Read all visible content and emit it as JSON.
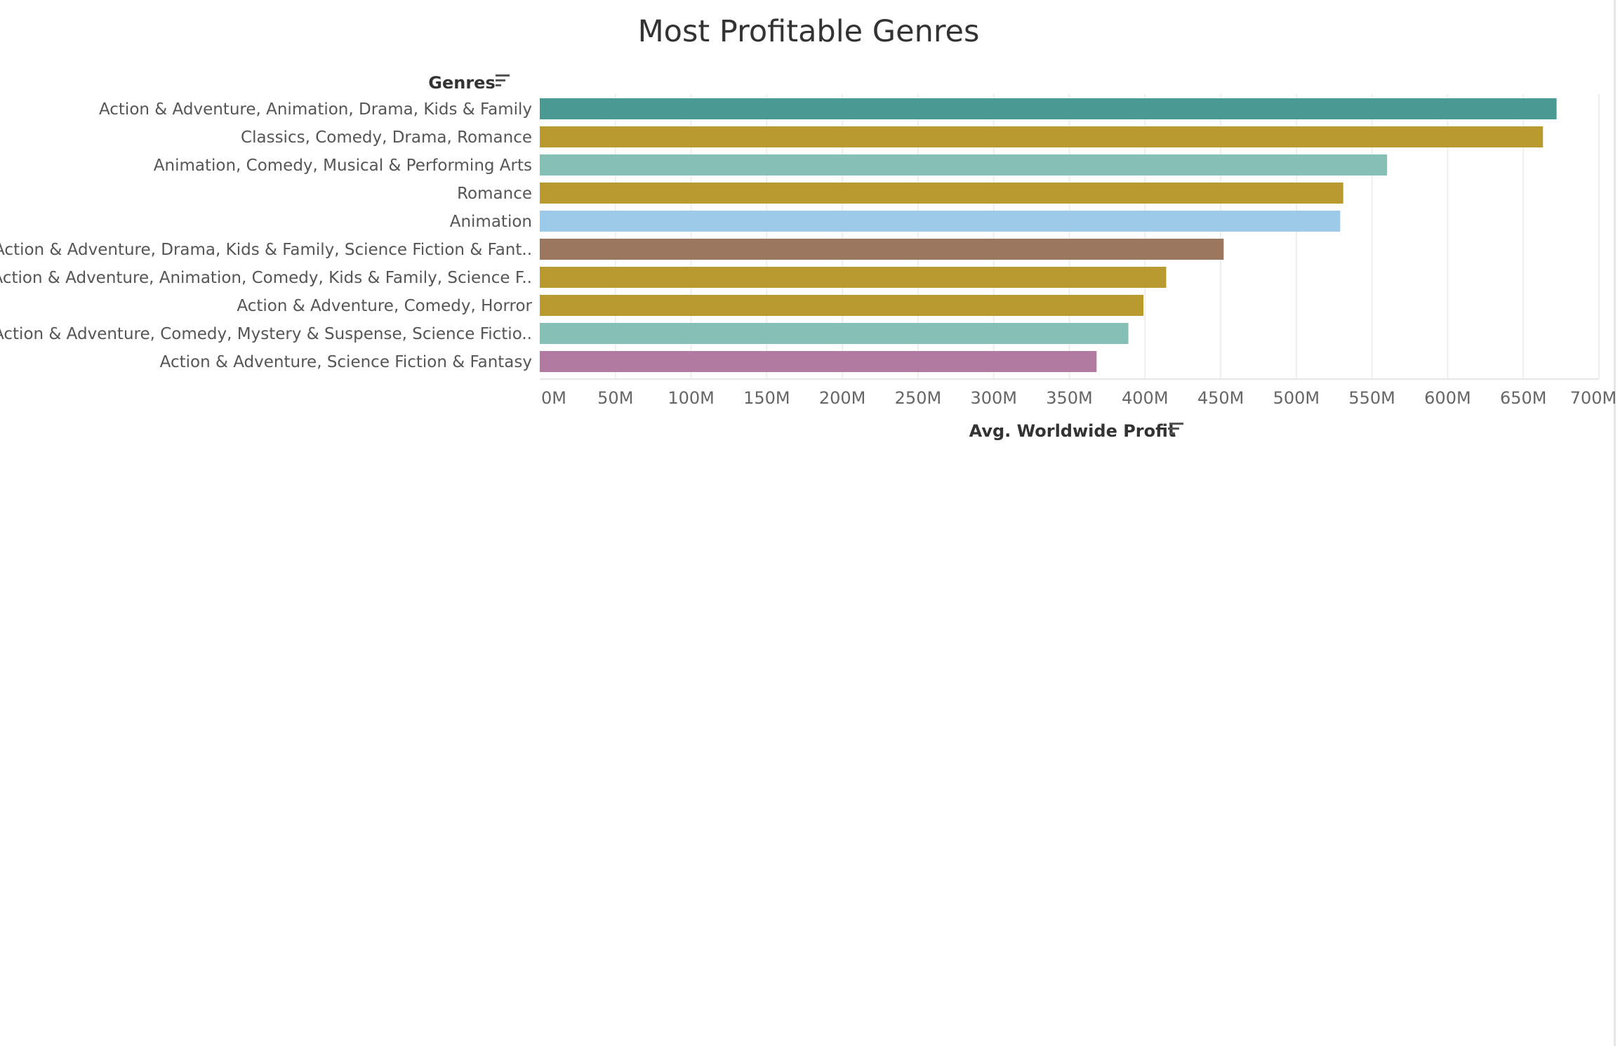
{
  "chart_data": {
    "type": "bar",
    "orientation": "horizontal",
    "title": "Most Profitable Genres",
    "ylabel": "Genres",
    "xlabel": "Avg. Worldwide Profit",
    "categories": [
      "Action & Adventure, Animation, Drama, Kids & Family",
      "Classics, Comedy, Drama, Romance",
      "Animation, Comedy, Musical & Performing Arts",
      "Romance",
      "Animation",
      "Action & Adventure, Drama, Kids & Family, Science Fiction & Fant..",
      "Action & Adventure, Animation, Comedy, Kids & Family, Science F..",
      "Action & Adventure, Comedy, Horror",
      "Action & Adventure, Comedy, Mystery & Suspense, Science Fictio..",
      "Action & Adventure, Science Fiction & Fantasy"
    ],
    "values": [
      672,
      663,
      560,
      531,
      529,
      452,
      414,
      399,
      389,
      368
    ],
    "unit": "M",
    "colors": [
      "#4a9a93",
      "#b89a30",
      "#86bfb5",
      "#b89a30",
      "#9ecae9",
      "#9c7760",
      "#b89a30",
      "#b89a30",
      "#86bfb5",
      "#b07aa1"
    ],
    "xlim": [
      0,
      700
    ],
    "xticks": [
      0,
      50,
      100,
      150,
      200,
      250,
      300,
      350,
      400,
      450,
      500,
      550,
      600,
      650,
      700
    ],
    "xtick_labels": [
      "0M",
      "50M",
      "100M",
      "150M",
      "200M",
      "250M",
      "300M",
      "350M",
      "400M",
      "450M",
      "500M",
      "550M",
      "600M",
      "650M",
      "700M"
    ],
    "grid": true,
    "legend": "none"
  },
  "icons": {
    "genres_sort": "sort-descending-icon",
    "profit_sort": "sort-descending-icon"
  }
}
